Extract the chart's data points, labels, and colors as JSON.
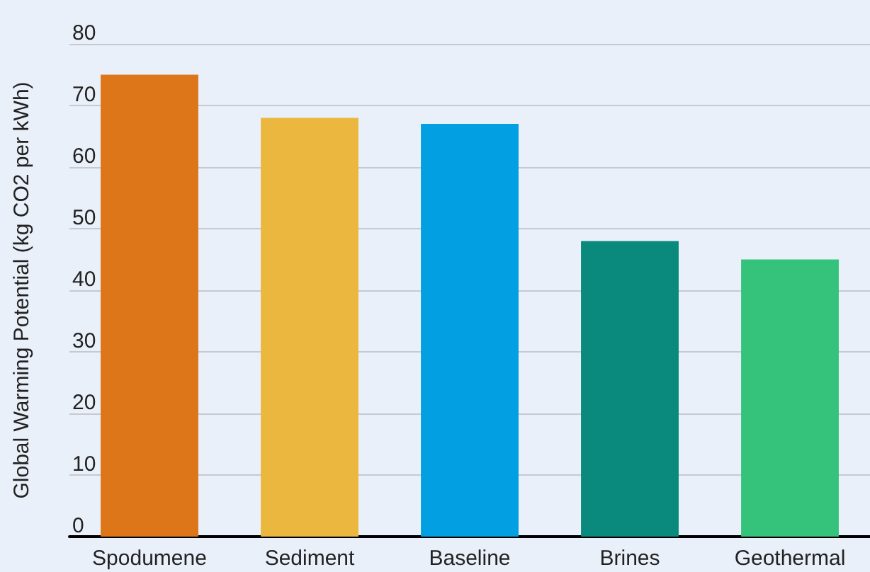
{
  "chart_data": {
    "type": "bar",
    "ylabel": "Global Warming Potential (kg CO2 per kWh)",
    "categories": [
      "Spodumene",
      "Sediment",
      "Baseline",
      "Brines",
      "Geothermal"
    ],
    "values": [
      75,
      68,
      67,
      48,
      45
    ],
    "colors": [
      "#dd7519",
      "#ecb73f",
      "#02a0e2",
      "#098a7c",
      "#35c37c"
    ],
    "ylim": [
      0,
      80
    ],
    "yticks": [
      0,
      10,
      20,
      30,
      40,
      50,
      60,
      70,
      80
    ],
    "grid": "y"
  }
}
